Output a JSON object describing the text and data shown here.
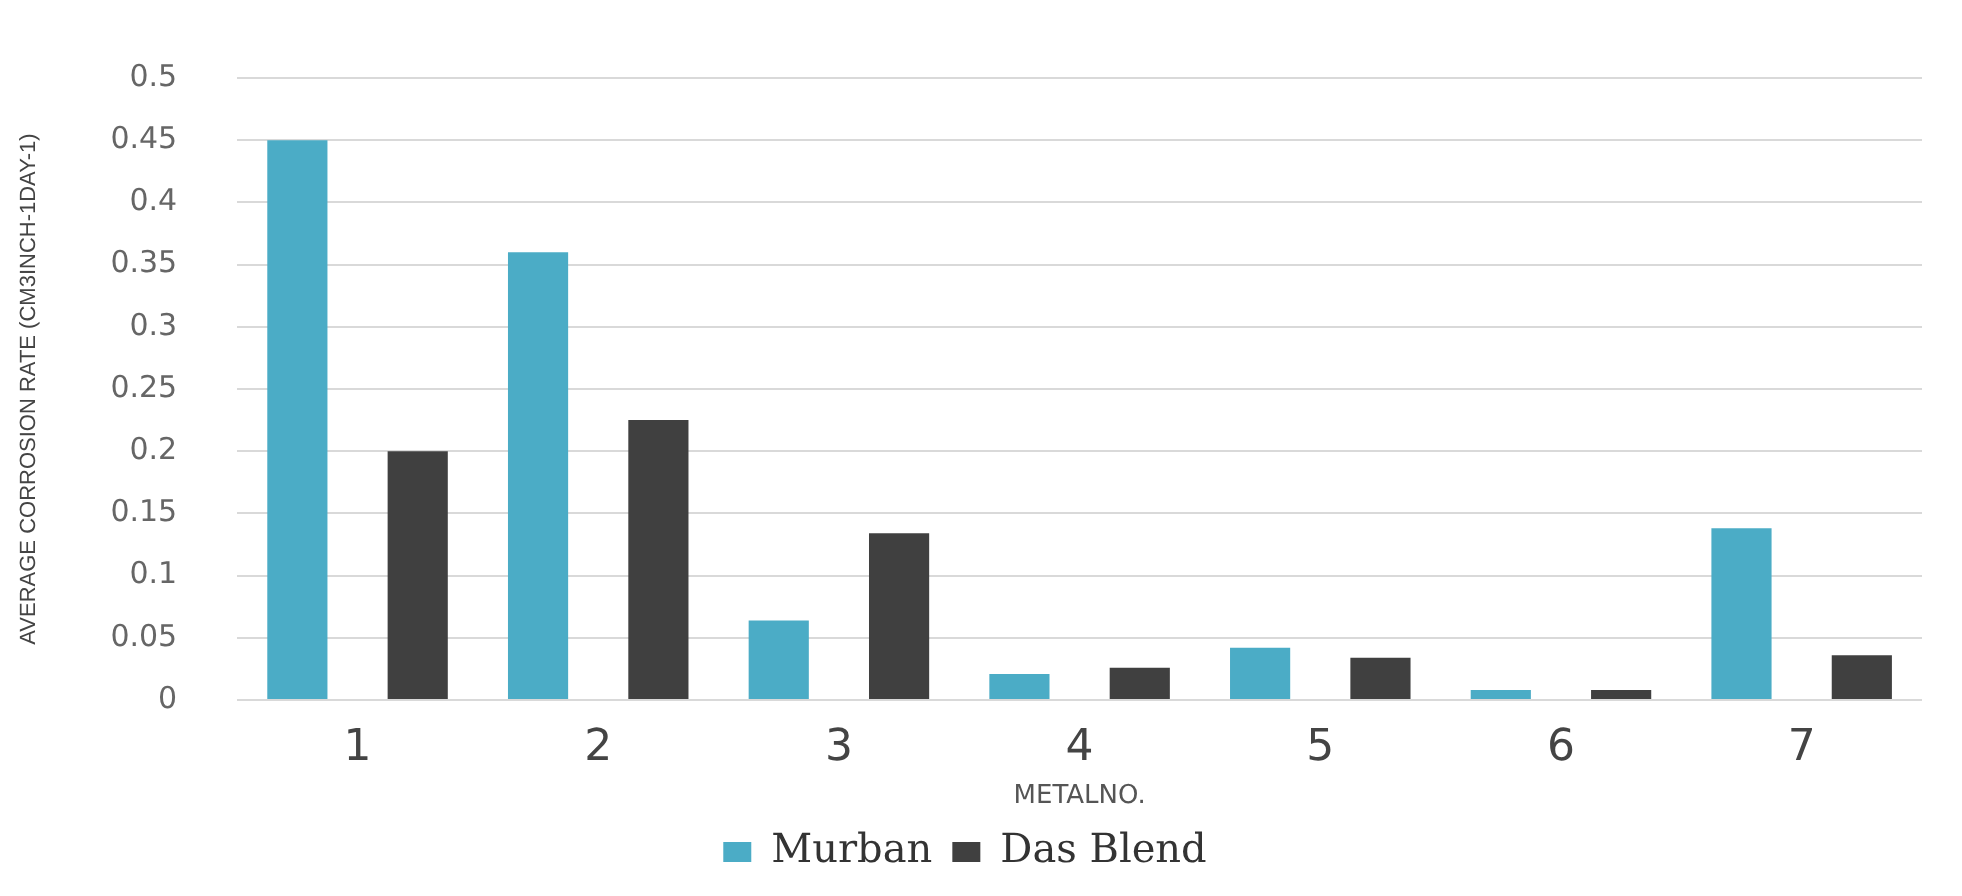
{
  "chart_data": {
    "type": "bar",
    "xlabel": "METALNO.",
    "ylabel": "AVERAGE CORROSION RATE (CM3INCH-1DAY-1)",
    "categories": [
      "1",
      "2",
      "3",
      "4",
      "5",
      "6",
      "7"
    ],
    "series": [
      {
        "name": "Murban",
        "color": "#4bacc6",
        "values": [
          0.45,
          0.36,
          0.064,
          0.021,
          0.042,
          0.008,
          0.138
        ]
      },
      {
        "name": "Das Blend",
        "color": "#404040",
        "values": [
          0.2,
          0.225,
          0.134,
          0.026,
          0.034,
          0.008,
          0.036
        ]
      }
    ],
    "ylim": [
      0,
      0.5
    ],
    "yticks": [
      0,
      0.05,
      0.1,
      0.15,
      0.2,
      0.25,
      0.3,
      0.35,
      0.4,
      0.45,
      0.5
    ],
    "grid": "y",
    "legend": "bottom"
  }
}
